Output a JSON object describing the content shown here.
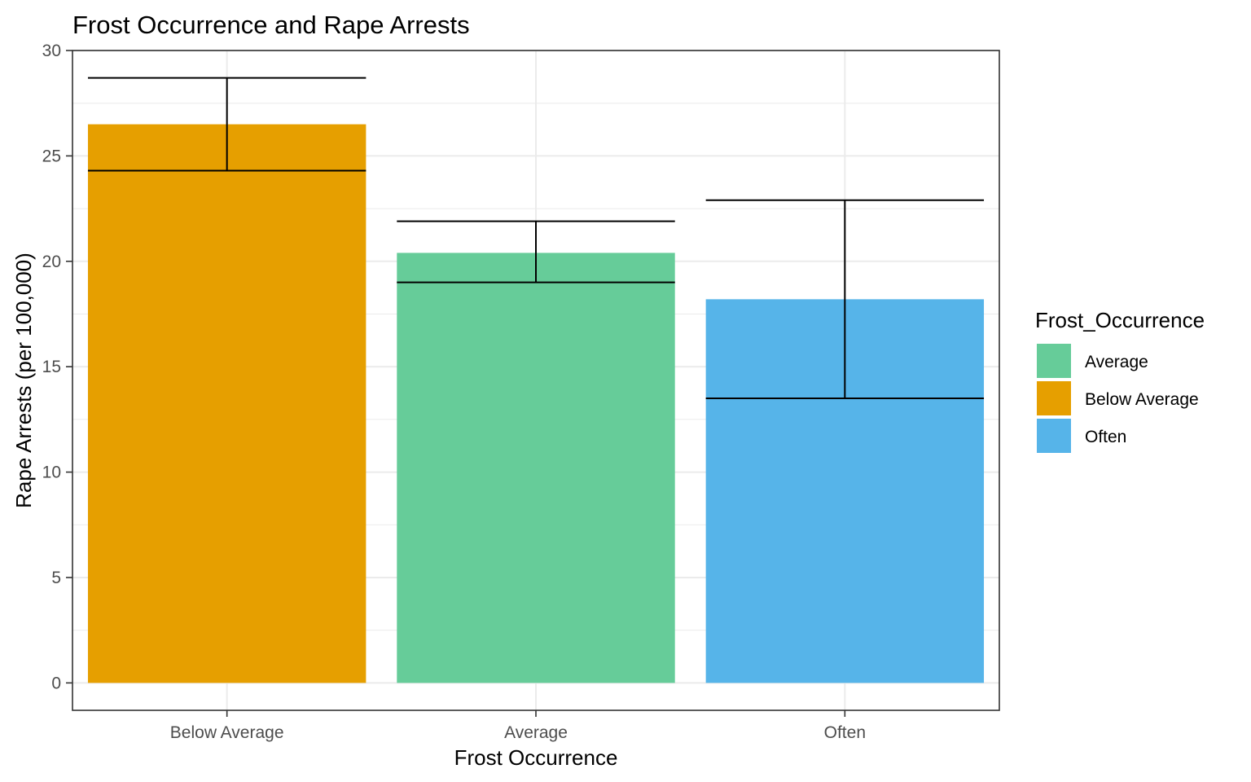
{
  "chart_data": {
    "type": "bar",
    "title": "Frost Occurrence and Rape Arrests",
    "xlabel": "Frost Occurrence",
    "ylabel": "Rape Arrests (per 100,000)",
    "categories": [
      "Below Average",
      "Average",
      "Often"
    ],
    "values": [
      26.5,
      20.4,
      18.2
    ],
    "error_bars": [
      {
        "low": 24.3,
        "high": 28.7
      },
      {
        "low": 19.0,
        "high": 21.9
      },
      {
        "low": 13.5,
        "high": 22.9
      }
    ],
    "bar_colors": [
      "#E69F00",
      "#66CC99",
      "#56B4E9"
    ],
    "ylim": [
      -1.3,
      30
    ],
    "yticks": [
      0,
      5,
      10,
      15,
      20,
      25,
      30
    ],
    "grid": true,
    "legend": {
      "title": "Frost_Occurrence",
      "placement": "right",
      "items": [
        {
          "label": "Average",
          "color": "#66CC99"
        },
        {
          "label": "Below Average",
          "color": "#E69F00"
        },
        {
          "label": "Often",
          "color": "#56B4E9"
        }
      ]
    }
  }
}
